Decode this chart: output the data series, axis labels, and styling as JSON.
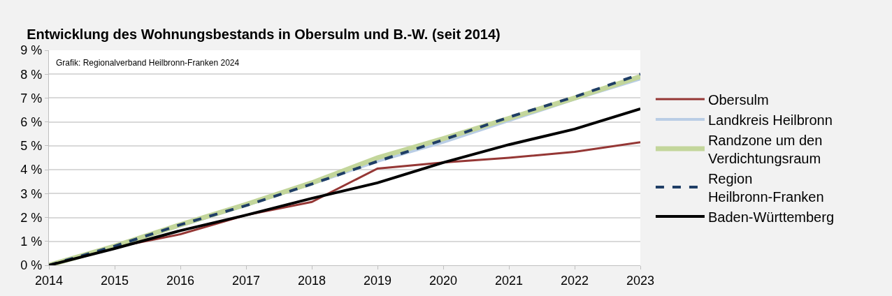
{
  "chart_data": {
    "type": "line",
    "title": "Entwicklung des Wohnungsbestands in Obersulm und B.-W. (seit 2014)",
    "annotations": [
      "Grafik: Regionalverband Heilbronn-Franken 2024"
    ],
    "x": [
      2014,
      2015,
      2016,
      2017,
      2018,
      2019,
      2020,
      2021,
      2022,
      2023
    ],
    "xlim": [
      2014,
      2023
    ],
    "xticks": [
      2014,
      2015,
      2016,
      2017,
      2018,
      2019,
      2020,
      2021,
      2022,
      2023
    ],
    "ylim": [
      0,
      9
    ],
    "yticks": [
      {
        "value": 0,
        "label": "0 %"
      },
      {
        "value": 1,
        "label": "1 %"
      },
      {
        "value": 2,
        "label": "2 %"
      },
      {
        "value": 3,
        "label": "3 %"
      },
      {
        "value": 4,
        "label": "4 %"
      },
      {
        "value": 5,
        "label": "5 %"
      },
      {
        "value": 6,
        "label": "6 %"
      },
      {
        "value": 7,
        "label": "7 %"
      },
      {
        "value": 8,
        "label": "8 %"
      },
      {
        "value": 9,
        "label": "9 %"
      }
    ],
    "grid": "y",
    "legend": "right",
    "marker": "none",
    "series": [
      {
        "name": "Obersulm",
        "color": "#953735",
        "values": [
          0,
          0.75,
          1.3,
          2.1,
          2.65,
          4.05,
          4.3,
          4.5,
          4.75,
          5.15
        ]
      },
      {
        "name": "Landkreis Heilbronn",
        "color": "#b9cde5",
        "values": [
          0,
          0.8,
          1.65,
          2.5,
          3.4,
          4.35,
          5.15,
          6.05,
          6.95,
          7.8
        ]
      },
      {
        "name": "Randzone um den Verdichtungsraum",
        "color": "#c3d69b",
        "values": [
          0,
          0.8,
          1.7,
          2.55,
          3.45,
          4.5,
          5.3,
          6.15,
          7.0,
          7.9
        ]
      },
      {
        "name": "Region Heilbronn-Franken",
        "color": "#1f3e66",
        "line_style": "dashed",
        "values": [
          0,
          0.8,
          1.7,
          2.5,
          3.4,
          4.35,
          5.25,
          6.2,
          7.05,
          8.0
        ]
      },
      {
        "name": "Baden-Württemberg",
        "color": "#000000",
        "values": [
          0,
          0.7,
          1.45,
          2.1,
          2.8,
          3.45,
          4.3,
          5.05,
          5.7,
          6.55
        ]
      }
    ]
  }
}
